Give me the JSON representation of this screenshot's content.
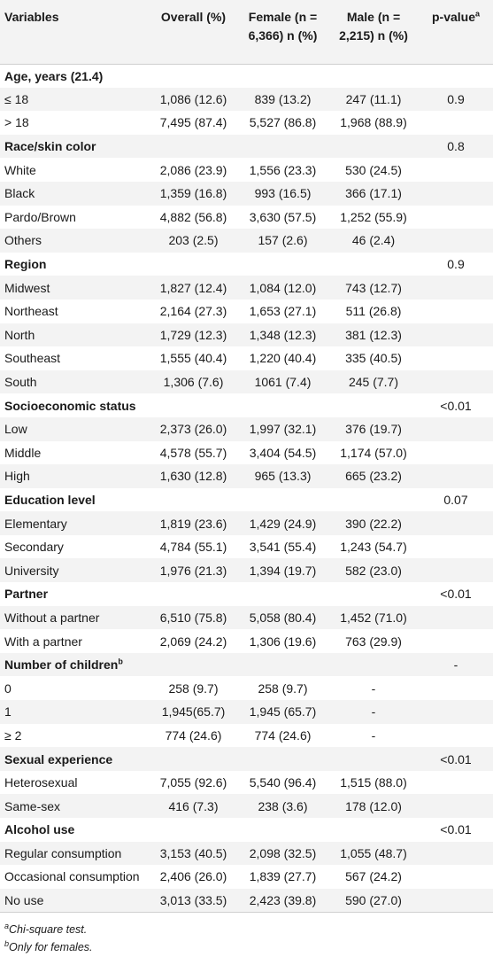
{
  "headers": {
    "variables": "Variables",
    "overall": "Overall (%)",
    "female_l1": "Female (n =",
    "female_l2": "6,366) n (%)",
    "male_l1": "Male (n =",
    "male_l2": "2,215) n (%)",
    "pvalue": "p-value",
    "pvalue_sup": "a"
  },
  "rows": [
    {
      "type": "section",
      "name": "Age, years (21.4)",
      "overall": "",
      "female": "",
      "male": "",
      "p": ""
    },
    {
      "type": "data",
      "name": "≤ 18",
      "overall": "1,086 (12.6)",
      "female": "839 (13.2)",
      "male": "247 (11.1)",
      "p": "0.9"
    },
    {
      "type": "data",
      "name": "> 18",
      "overall": "7,495 (87.4)",
      "female": "5,527 (86.8)",
      "male": "1,968 (88.9)",
      "p": ""
    },
    {
      "type": "section",
      "name": "Race/skin color",
      "overall": "",
      "female": "",
      "male": "",
      "p": "0.8"
    },
    {
      "type": "data",
      "name": "White",
      "overall": "2,086 (23.9)",
      "female": "1,556 (23.3)",
      "male": "530 (24.5)",
      "p": ""
    },
    {
      "type": "data",
      "name": "Black",
      "overall": "1,359 (16.8)",
      "female": "993 (16.5)",
      "male": "366 (17.1)",
      "p": ""
    },
    {
      "type": "data",
      "name": "Pardo/Brown",
      "overall": "4,882 (56.8)",
      "female": "3,630 (57.5)",
      "male": "1,252 (55.9)",
      "p": ""
    },
    {
      "type": "data",
      "name": "Others",
      "overall": "203 (2.5)",
      "female": "157 (2.6)",
      "male": "46 (2.4)",
      "p": ""
    },
    {
      "type": "section",
      "name": "Region",
      "overall": "",
      "female": "",
      "male": "",
      "p": "0.9"
    },
    {
      "type": "data",
      "name": "Midwest",
      "overall": "1,827 (12.4)",
      "female": "1,084 (12.0)",
      "male": "743 (12.7)",
      "p": ""
    },
    {
      "type": "data",
      "name": "Northeast",
      "overall": "2,164 (27.3)",
      "female": "1,653 (27.1)",
      "male": "511 (26.8)",
      "p": ""
    },
    {
      "type": "data",
      "name": "North",
      "overall": "1,729 (12.3)",
      "female": "1,348 (12.3)",
      "male": "381 (12.3)",
      "p": ""
    },
    {
      "type": "data",
      "name": "Southeast",
      "overall": "1,555 (40.4)",
      "female": "1,220 (40.4)",
      "male": "335 (40.5)",
      "p": ""
    },
    {
      "type": "data",
      "name": "South",
      "overall": "1,306 (7.6)",
      "female": "1061 (7.4)",
      "male": "245 (7.7)",
      "p": ""
    },
    {
      "type": "section",
      "name": "Socioeconomic status",
      "overall": "",
      "female": "",
      "male": "",
      "p": "<0.01"
    },
    {
      "type": "data",
      "name": "Low",
      "overall": "2,373 (26.0)",
      "female": "1,997 (32.1)",
      "male": "376 (19.7)",
      "p": ""
    },
    {
      "type": "data",
      "name": "Middle",
      "overall": "4,578 (55.7)",
      "female": "3,404 (54.5)",
      "male": "1,174 (57.0)",
      "p": ""
    },
    {
      "type": "data",
      "name": "High",
      "overall": "1,630 (12.8)",
      "female": "965 (13.3)",
      "male": "665 (23.2)",
      "p": ""
    },
    {
      "type": "section",
      "name": "Education level",
      "overall": "",
      "female": "",
      "male": "",
      "p": "0.07"
    },
    {
      "type": "data",
      "name": "Elementary",
      "overall": "1,819 (23.6)",
      "female": "1,429 (24.9)",
      "male": "390 (22.2)",
      "p": ""
    },
    {
      "type": "data",
      "name": "Secondary",
      "overall": "4,784 (55.1)",
      "female": "3,541 (55.4)",
      "male": "1,243 (54.7)",
      "p": ""
    },
    {
      "type": "data",
      "name": "University",
      "overall": "1,976 (21.3)",
      "female": "1,394 (19.7)",
      "male": "582 (23.0)",
      "p": ""
    },
    {
      "type": "section",
      "name": "Partner",
      "overall": "",
      "female": "",
      "male": "",
      "p": "<0.01"
    },
    {
      "type": "data",
      "name": "Without a partner",
      "overall": "6,510 (75.8)",
      "female": "5,058 (80.4)",
      "male": "1,452 (71.0)",
      "p": ""
    },
    {
      "type": "data",
      "name": "With a partner",
      "overall": "2,069 (24.2)",
      "female": "1,306 (19.6)",
      "male": "763 (29.9)",
      "p": ""
    },
    {
      "type": "section",
      "name": "Number of children",
      "sup": "b",
      "overall": "",
      "female": "",
      "male": "",
      "p": "-"
    },
    {
      "type": "data",
      "name": "0",
      "overall": "258 (9.7)",
      "female": "258 (9.7)",
      "male": "-",
      "p": ""
    },
    {
      "type": "data",
      "name": "1",
      "overall": "1,945(65.7)",
      "female": "1,945 (65.7)",
      "male": "-",
      "p": ""
    },
    {
      "type": "data",
      "name": "≥ 2",
      "overall": "774 (24.6)",
      "female": "774 (24.6)",
      "male": "-",
      "p": ""
    },
    {
      "type": "section",
      "name": "Sexual experience",
      "overall": "",
      "female": "",
      "male": "",
      "p": "<0.01"
    },
    {
      "type": "data",
      "name": "Heterosexual",
      "overall": "7,055 (92.6)",
      "female": "5,540 (96.4)",
      "male": "1,515 (88.0)",
      "p": ""
    },
    {
      "type": "data",
      "name": "Same-sex",
      "overall": "416 (7.3)",
      "female": "238 (3.6)",
      "male": "178 (12.0)",
      "p": ""
    },
    {
      "type": "section",
      "name": "Alcohol use",
      "overall": "",
      "female": "",
      "male": "",
      "p": "<0.01"
    },
    {
      "type": "data",
      "name": "Regular consumption",
      "overall": "3,153 (40.5)",
      "female": "2,098 (32.5)",
      "male": "1,055 (48.7)",
      "p": ""
    },
    {
      "type": "data",
      "name": "Occasional consumption",
      "overall": "2,406 (26.0)",
      "female": "1,839 (27.7)",
      "male": "567 (24.2)",
      "p": ""
    },
    {
      "type": "data",
      "name": "No use",
      "overall": "3,013 (33.5)",
      "female": "2,423 (39.8)",
      "male": "590 (27.0)",
      "p": ""
    }
  ],
  "footnotes": [
    {
      "sup": "a",
      "text": "Chi-square test."
    },
    {
      "sup": "b",
      "text": "Only for females."
    }
  ]
}
